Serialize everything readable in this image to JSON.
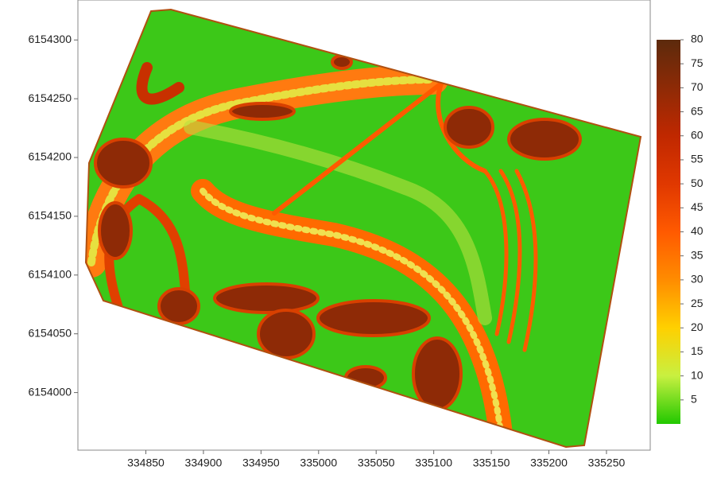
{
  "chart_data": {
    "type": "heatmap",
    "xlim": [
      334791,
      335288
    ],
    "ylim": [
      6153951,
      6154334
    ],
    "xticks": [
      334850,
      334900,
      334950,
      335000,
      335050,
      335100,
      335150,
      335200,
      335250
    ],
    "yticks": [
      6154000,
      6154050,
      6154100,
      6154150,
      6154200,
      6154250,
      6154300
    ],
    "colorbar": {
      "lim": [
        0,
        80
      ],
      "ticks": [
        5,
        10,
        15,
        20,
        25,
        30,
        35,
        40,
        45,
        50,
        55,
        60,
        65,
        70,
        75,
        80
      ],
      "colors": [
        "#22c800",
        "#c8f040",
        "#ffd000",
        "#ff8c00",
        "#ff5a00",
        "#e03800",
        "#c02800",
        "#8e2a06",
        "#5c2a0c"
      ]
    }
  }
}
